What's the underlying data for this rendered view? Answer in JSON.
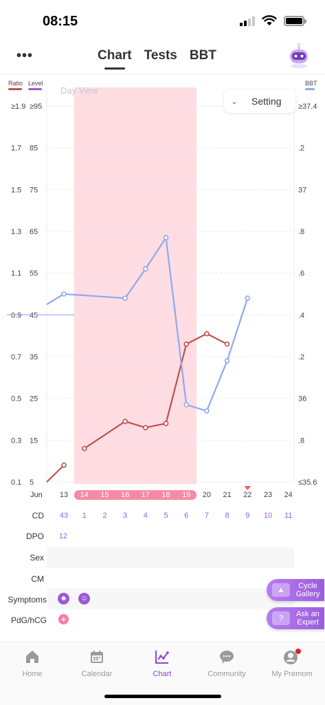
{
  "status": {
    "time": "08:15"
  },
  "header": {
    "tabs": [
      "Chart",
      "Tests",
      "BBT"
    ],
    "active_tab": 0
  },
  "legend": {
    "ratio": "Ratio",
    "level": "Level",
    "bbt": "BBT",
    "ratio_color": "#c0504d",
    "level_color": "#9b59d6",
    "bbt_color": "#8fa8f0"
  },
  "view": {
    "day_view_label": "Day View",
    "setting_label": "Setting"
  },
  "axes": {
    "ratio_ticks": [
      "≥1.9",
      "1.7",
      "1.5",
      "1.3",
      "1.1",
      "0.9",
      "0.7",
      "0.5",
      "0.3",
      "0.1"
    ],
    "level_ticks": [
      "≥95",
      "85",
      "75",
      "65",
      "55",
      "45",
      "35",
      "25",
      "15",
      "5"
    ],
    "bbt_ticks": [
      "≥37.4",
      ".2",
      "37",
      ".8",
      ".6",
      ".4",
      ".2",
      "36",
      ".8",
      "≤35.6"
    ]
  },
  "chart_data": {
    "type": "line",
    "x": [
      "13",
      "14",
      "15",
      "16",
      "17",
      "18",
      "19",
      "20",
      "21",
      "22",
      "23",
      "24"
    ],
    "x_month_label": "Jun",
    "period_days": [
      "14",
      "15",
      "16",
      "17",
      "18",
      "19"
    ],
    "marked_day": "22",
    "series": [
      {
        "name": "Ratio",
        "axis": "left",
        "ylim": [
          0.1,
          1.9
        ],
        "points": [
          {
            "x": "12",
            "y": 0.1
          },
          {
            "x": "13",
            "y": 0.18
          },
          {
            "x": "14",
            "y": 0.26
          },
          {
            "x": "16",
            "y": 0.39
          },
          {
            "x": "17",
            "y": 0.36
          },
          {
            "x": "18",
            "y": 0.38
          },
          {
            "x": "19",
            "y": 0.76
          },
          {
            "x": "20",
            "y": 0.81
          },
          {
            "x": "21",
            "y": 0.76
          }
        ]
      },
      {
        "name": "BBT",
        "axis": "right",
        "ylim": [
          35.6,
          37.4
        ],
        "points": [
          {
            "x": "12",
            "y": 36.45
          },
          {
            "x": "13",
            "y": 36.5
          },
          {
            "x": "16",
            "y": 36.48
          },
          {
            "x": "17",
            "y": 36.62
          },
          {
            "x": "18",
            "y": 36.77
          },
          {
            "x": "19",
            "y": 35.97
          },
          {
            "x": "20",
            "y": 35.94
          },
          {
            "x": "21",
            "y": 36.18
          },
          {
            "x": "22",
            "y": 36.48
          }
        ]
      }
    ]
  },
  "rows": {
    "cd_label": "CD",
    "cd_values": [
      "43",
      "1",
      "2",
      "3",
      "4",
      "5",
      "6",
      "7",
      "8",
      "9",
      "10",
      "11"
    ],
    "dpo_label": "DPO",
    "dpo_values": [
      "12"
    ],
    "sex_label": "Sex",
    "cm_label": "CM",
    "symptoms_label": "Symptoms",
    "pdg_label": "PdG/hCG",
    "pdg_plus": "+"
  },
  "floating": {
    "cycle_gallery": [
      "Cycle",
      "Gallery"
    ],
    "ask_expert": [
      "Ask an",
      "Expert"
    ]
  },
  "nav": {
    "items": [
      "Home",
      "Calendar",
      "Chart",
      "Community",
      "My Premom"
    ],
    "active": 2,
    "accent": "#8e44ce"
  }
}
